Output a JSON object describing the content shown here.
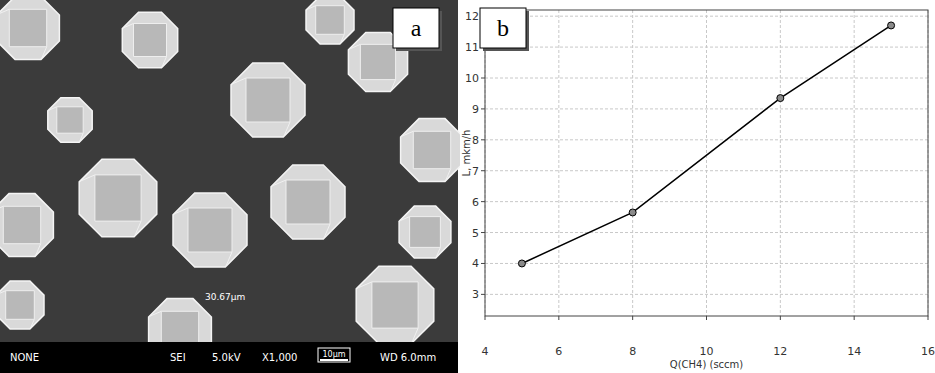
{
  "panel_labels": [
    "a",
    "b"
  ],
  "sem_image": {
    "measurement": "30.67μm",
    "info_bar": [
      "NONE",
      "SEI",
      "5.0kV",
      "X1,000",
      "WD 6.0mm"
    ],
    "scale_bar": "10μm"
  },
  "chart_data": {
    "type": "line",
    "x_label": "Q(CH4) (sccm)",
    "y_label": "L, mkm/h",
    "x": [
      5,
      8,
      12,
      15
    ],
    "values": [
      4.0,
      5.65,
      9.35,
      11.7
    ],
    "color": "#000000",
    "marker": "circle",
    "xlim": [
      4,
      16
    ],
    "ylim": [
      2.3,
      12.2
    ],
    "xticks": [
      4,
      6,
      8,
      10,
      12,
      14,
      16
    ],
    "yticks": [
      3,
      4,
      5,
      6,
      7,
      8,
      9,
      10,
      11,
      12
    ],
    "grid": true
  }
}
